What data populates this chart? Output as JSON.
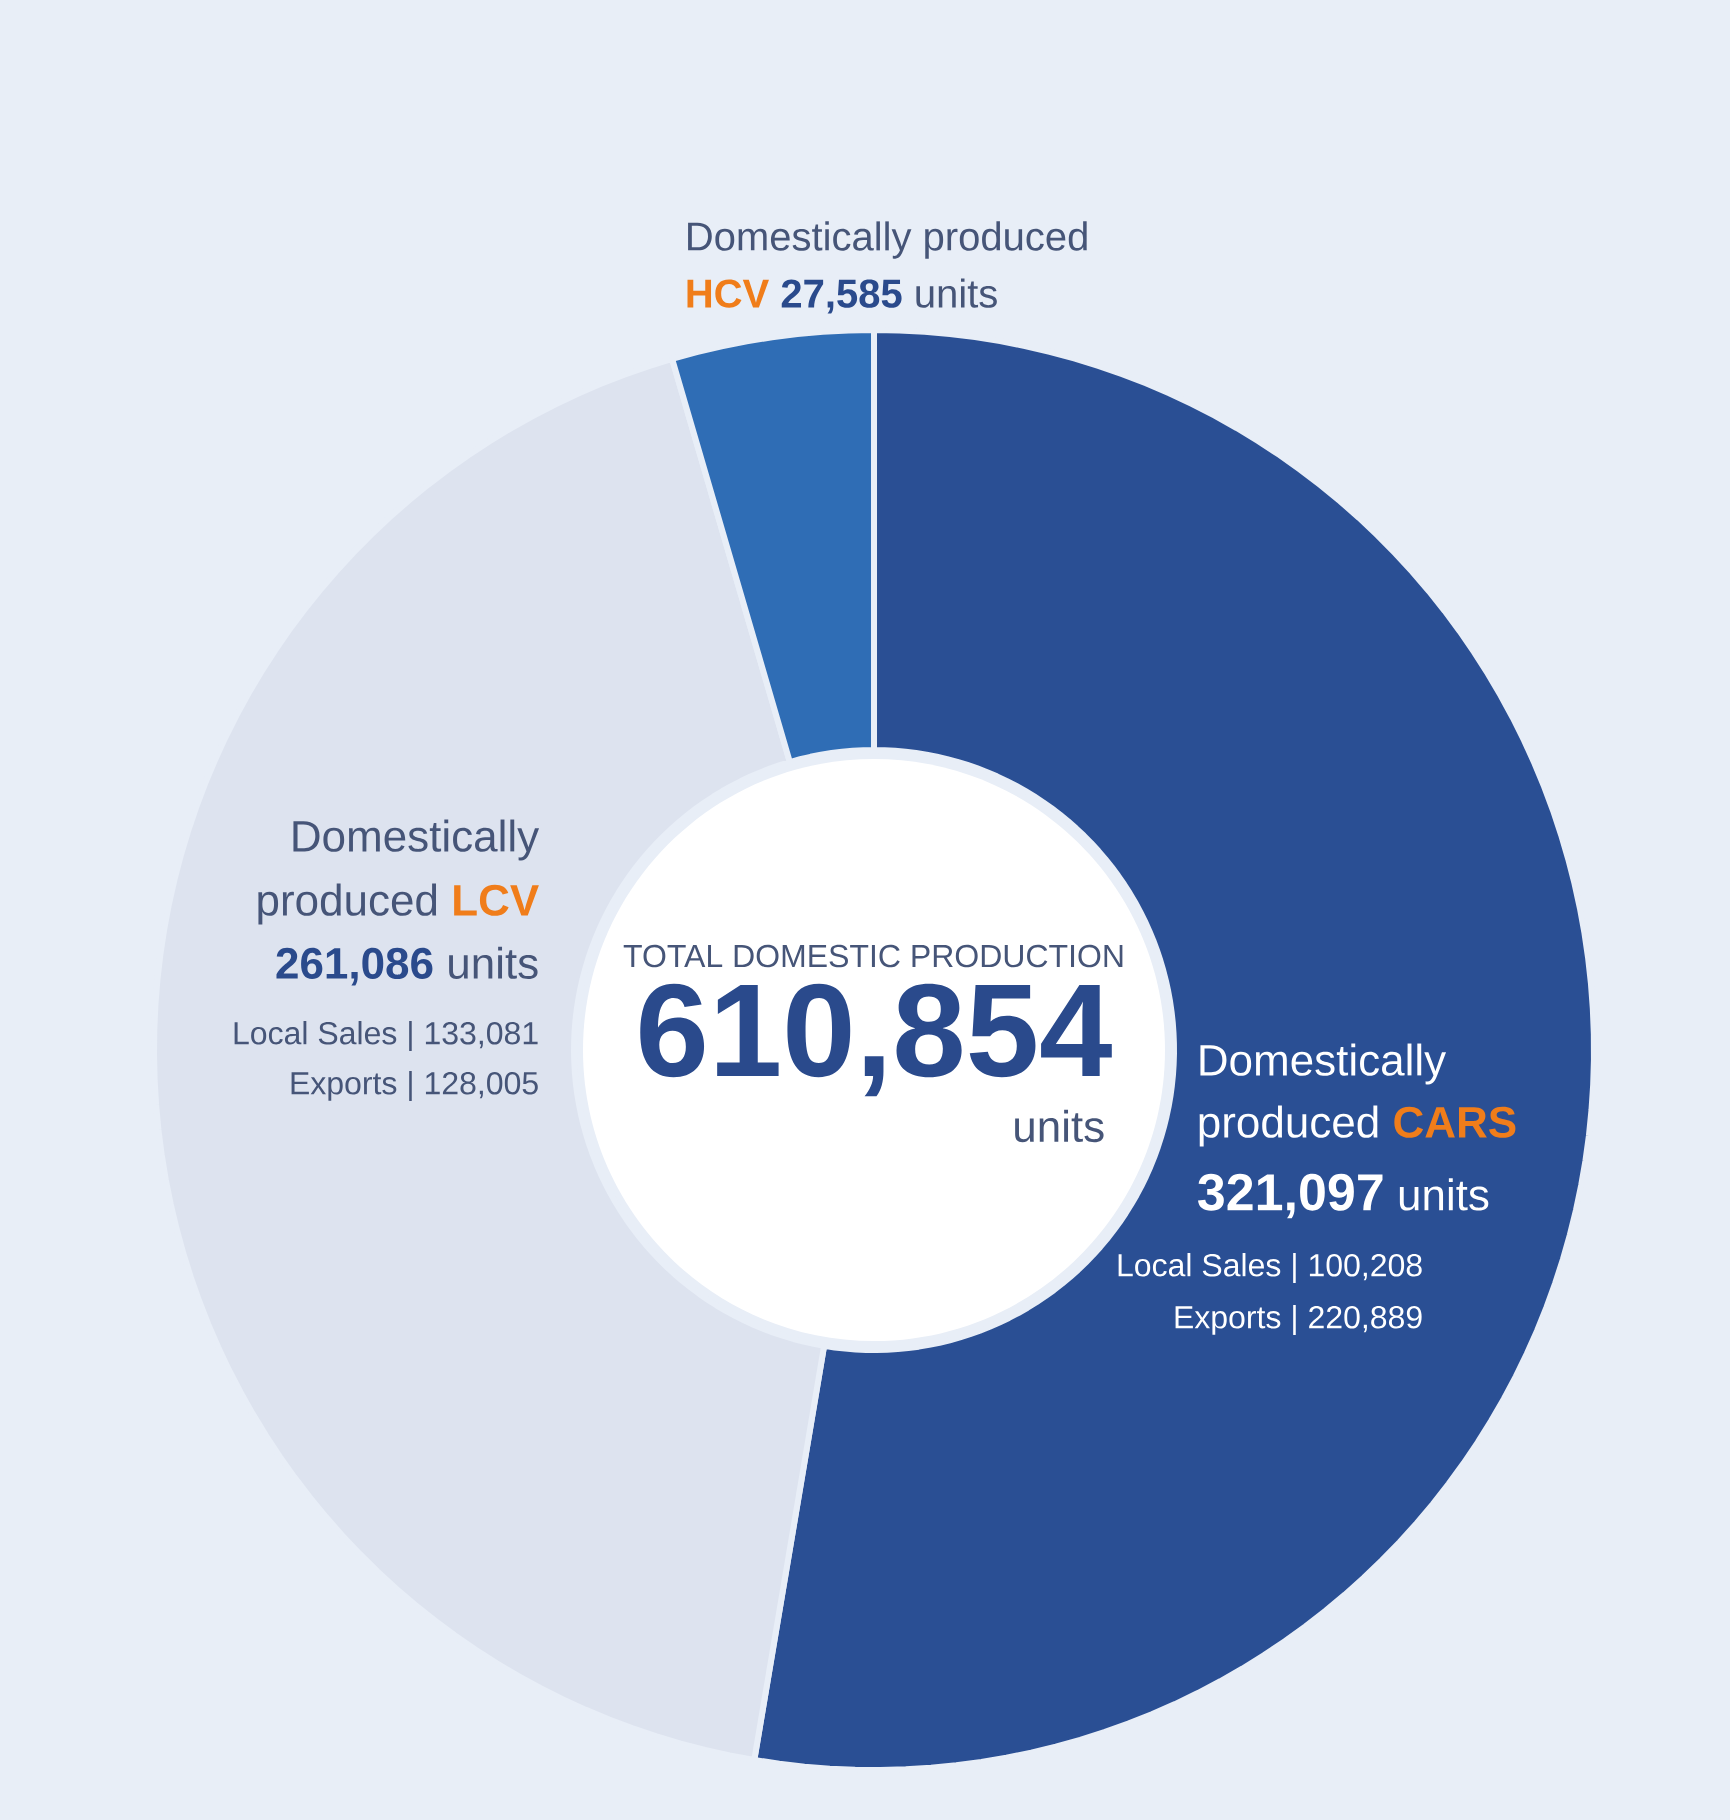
{
  "chart_data": {
    "type": "donut",
    "title": "TOTAL DOMESTIC PRODUCTION",
    "categories": [
      "CARS",
      "LCV",
      "HCV"
    ],
    "values": [
      321097,
      261086,
      27585
    ],
    "colors": [
      "#2a4f94",
      "#dde3ef",
      "#2f6db5"
    ],
    "value_labels": [
      "321,097",
      "261,086",
      "27,585"
    ],
    "annotations": [
      "610,854",
      "units",
      "Domestically",
      "produced",
      "units",
      "Local Sales | 100,208",
      "Exports | 220,889",
      "Domestically",
      "produced",
      "units",
      "Local Sales | 133,081",
      "Exports | 128,005",
      "Domestically produced",
      "units"
    ]
  }
}
